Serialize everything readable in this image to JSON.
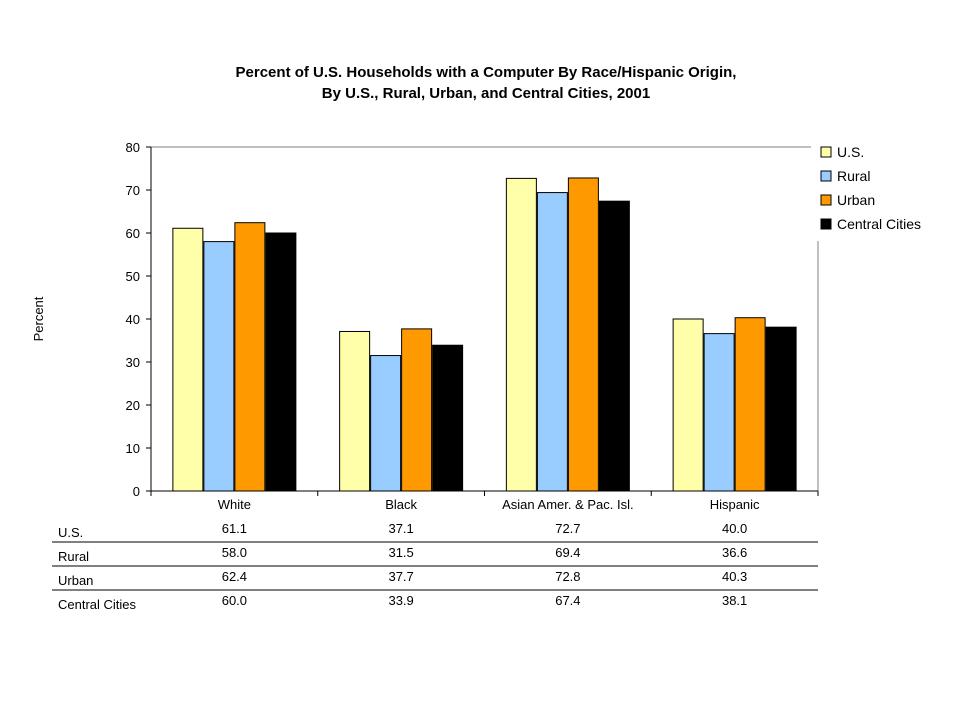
{
  "chart_data": {
    "type": "bar",
    "title": [
      "Percent of U.S. Households with a Computer By Race/Hispanic Origin,",
      "By U.S., Rural, Urban, and Central Cities, 2001"
    ],
    "xlabel": "",
    "ylabel": "Percent",
    "ylim": [
      0,
      80
    ],
    "yticks": [
      0,
      10,
      20,
      30,
      40,
      50,
      60,
      70,
      80
    ],
    "grid": false,
    "legend_position": "right",
    "categories": [
      "White",
      "Black",
      "Asian Amer. & Pac. Isl.",
      "Hispanic"
    ],
    "series": [
      {
        "name": "U.S.",
        "color": "#ffffaa",
        "values": [
          61.1,
          37.1,
          72.7,
          40.0
        ],
        "labels": [
          "61.1",
          "37.1",
          "72.7",
          "40.0"
        ]
      },
      {
        "name": "Rural",
        "color": "#99ccff",
        "values": [
          58.0,
          31.5,
          69.4,
          36.6
        ],
        "labels": [
          "58.0",
          "31.5",
          "69.4",
          "36.6"
        ]
      },
      {
        "name": "Urban",
        "color": "#ff9900",
        "values": [
          62.4,
          37.7,
          72.8,
          40.3
        ],
        "labels": [
          "62.4",
          "37.7",
          "72.8",
          "40.3"
        ]
      },
      {
        "name": "Central Cities",
        "color": "#000000",
        "values": [
          60.0,
          33.9,
          67.4,
          38.1
        ],
        "labels": [
          "60.0",
          "33.9",
          "67.4",
          "38.1"
        ]
      }
    ],
    "data_table": true
  }
}
